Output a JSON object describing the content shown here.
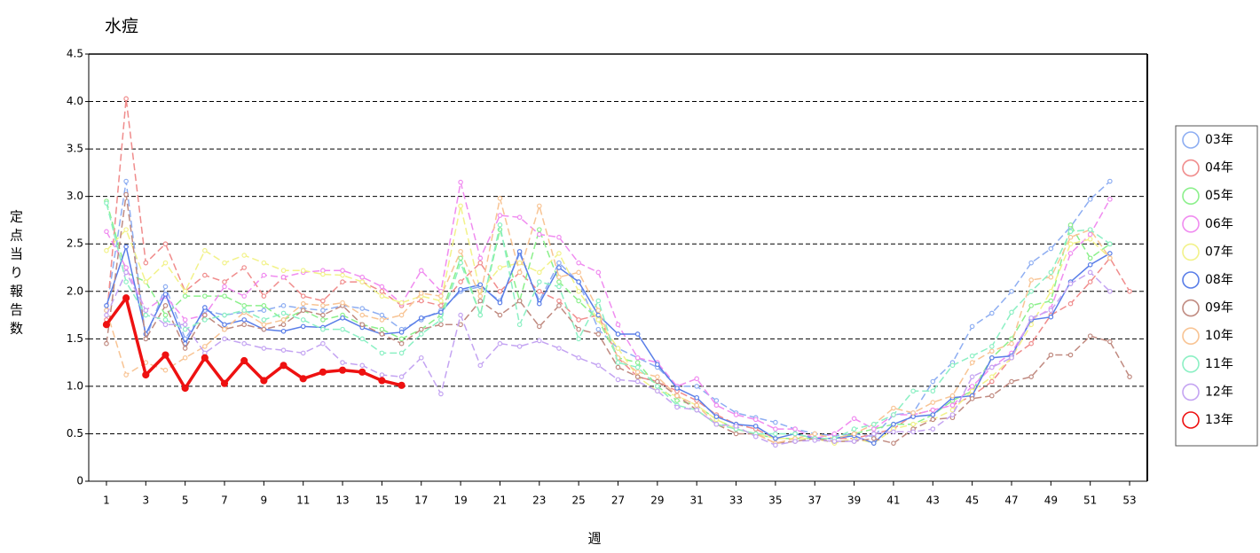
{
  "chart_data": {
    "type": "line",
    "title": "水痘",
    "x_label": "週",
    "y_label": "定点当り報告数",
    "x": [
      1,
      2,
      3,
      4,
      5,
      6,
      7,
      8,
      9,
      10,
      11,
      12,
      13,
      14,
      15,
      16,
      17,
      18,
      19,
      20,
      21,
      22,
      23,
      24,
      25,
      26,
      27,
      28,
      29,
      30,
      31,
      32,
      33,
      34,
      35,
      36,
      37,
      38,
      39,
      40,
      41,
      42,
      43,
      44,
      45,
      46,
      47,
      48,
      49,
      50,
      51,
      52,
      53
    ],
    "xlim": [
      0.1,
      53.9
    ],
    "xticks": [
      1,
      3,
      5,
      7,
      9,
      11,
      13,
      15,
      17,
      19,
      21,
      23,
      25,
      27,
      29,
      31,
      33,
      35,
      37,
      39,
      41,
      43,
      45,
      47,
      49,
      51,
      53
    ],
    "ylim": [
      0,
      4.5
    ],
    "yticks": [
      0,
      0.5,
      {
        "value": 1,
        "label": "1.0"
      },
      1.5,
      {
        "value": 2,
        "label": "2.0"
      },
      2.5,
      {
        "value": 3,
        "label": "3.0"
      },
      3.5,
      {
        "value": 4,
        "label": "4.0"
      },
      4.5
    ],
    "grid": true,
    "legend": "right",
    "series": [
      {
        "name": "03年",
        "color": "#8eaef2",
        "line_style": "dashed",
        "line_width": 1.5,
        "values": [
          1.8,
          3.16,
          1.5,
          2.05,
          1.5,
          1.8,
          1.75,
          1.78,
          1.8,
          1.85,
          1.82,
          1.8,
          1.85,
          1.82,
          1.75,
          1.6,
          1.7,
          1.8,
          2.0,
          2.05,
          1.9,
          2.4,
          1.9,
          2.3,
          2.1,
          1.6,
          1.4,
          1.3,
          1.2,
          1.0,
          1.0,
          0.85,
          0.72,
          0.67,
          0.62,
          0.55,
          0.5,
          0.48,
          0.5,
          0.47,
          0.7,
          0.72,
          1.05,
          1.25,
          1.63,
          1.77,
          2.0,
          2.3,
          2.45,
          2.68,
          2.97,
          3.16,
          null
        ]
      },
      {
        "name": "04年",
        "color": "#f08c8c",
        "line_style": "dashed",
        "line_width": 1.5,
        "values": [
          1.7,
          4.03,
          2.3,
          2.5,
          2.0,
          2.17,
          2.1,
          2.25,
          1.95,
          2.15,
          1.95,
          1.9,
          2.1,
          2.1,
          2.0,
          1.85,
          1.9,
          1.85,
          2.1,
          2.3,
          2.0,
          2.2,
          2.0,
          1.9,
          1.7,
          1.75,
          1.3,
          1.1,
          1.05,
          0.95,
          0.85,
          0.7,
          0.6,
          0.55,
          0.45,
          0.45,
          0.45,
          0.45,
          0.45,
          0.5,
          0.55,
          0.7,
          0.75,
          0.8,
          0.9,
          1.05,
          1.3,
          1.45,
          1.75,
          1.87,
          2.1,
          2.35,
          2.0
        ]
      },
      {
        "name": "05年",
        "color": "#8cf08c",
        "line_style": "dashed",
        "line_width": 1.5,
        "values": [
          2.95,
          2.2,
          2.1,
          1.75,
          1.95,
          1.95,
          1.95,
          1.85,
          1.85,
          1.7,
          1.8,
          1.7,
          1.75,
          1.65,
          1.6,
          1.5,
          1.6,
          1.75,
          2.35,
          1.75,
          2.65,
          1.9,
          2.65,
          2.1,
          1.9,
          1.7,
          1.3,
          1.25,
          1.0,
          0.85,
          0.8,
          0.65,
          0.55,
          0.5,
          0.45,
          0.45,
          0.45,
          0.45,
          0.5,
          0.55,
          0.6,
          0.6,
          0.7,
          0.85,
          0.95,
          1.3,
          1.5,
          1.85,
          1.9,
          2.7,
          2.35,
          2.5,
          null
        ]
      },
      {
        "name": "06年",
        "color": "#f08cf0",
        "line_style": "dashed",
        "line_width": 1.5,
        "values": [
          2.63,
          2.25,
          1.8,
          1.95,
          1.7,
          1.75,
          2.05,
          1.95,
          2.17,
          2.15,
          2.2,
          2.22,
          2.22,
          2.15,
          2.05,
          1.87,
          2.22,
          2.0,
          3.15,
          2.35,
          2.8,
          2.78,
          2.6,
          2.57,
          2.3,
          2.2,
          1.65,
          1.3,
          1.25,
          1.0,
          1.08,
          0.8,
          0.7,
          0.65,
          0.55,
          0.55,
          0.45,
          0.5,
          0.66,
          0.55,
          0.7,
          0.7,
          0.75,
          0.8,
          1.0,
          1.2,
          1.35,
          1.7,
          1.82,
          2.4,
          2.6,
          2.97,
          null
        ]
      },
      {
        "name": "07年",
        "color": "#f2f28a",
        "line_style": "dashed",
        "line_width": 1.5,
        "values": [
          2.43,
          2.65,
          2.1,
          2.3,
          2.0,
          2.43,
          2.3,
          2.38,
          2.3,
          2.22,
          2.22,
          2.18,
          2.17,
          2.1,
          1.95,
          1.88,
          1.95,
          1.9,
          2.9,
          2.0,
          2.25,
          2.3,
          2.2,
          2.4,
          2.0,
          1.7,
          1.4,
          1.1,
          0.95,
          0.9,
          0.8,
          0.65,
          0.55,
          0.5,
          0.45,
          0.45,
          0.45,
          0.4,
          0.45,
          0.4,
          0.55,
          0.6,
          0.65,
          0.75,
          0.95,
          1.1,
          1.3,
          1.65,
          2.0,
          2.5,
          2.55,
          2.35,
          null
        ]
      },
      {
        "name": "08年",
        "color": "#5a7ee8",
        "line_style": "solid",
        "line_width": 1.5,
        "values": [
          1.85,
          2.47,
          1.55,
          1.97,
          1.45,
          1.83,
          1.65,
          1.7,
          1.6,
          1.58,
          1.63,
          1.62,
          1.72,
          1.62,
          1.55,
          1.57,
          1.72,
          1.78,
          2.02,
          2.07,
          1.88,
          2.42,
          1.87,
          2.25,
          2.1,
          1.75,
          1.55,
          1.55,
          1.23,
          0.98,
          0.88,
          0.68,
          0.6,
          0.58,
          0.45,
          0.5,
          0.45,
          0.45,
          0.48,
          0.4,
          0.6,
          0.68,
          0.7,
          0.88,
          0.9,
          1.3,
          1.32,
          1.7,
          1.73,
          2.1,
          2.28,
          2.4,
          null
        ]
      },
      {
        "name": "09年",
        "color": "#c08a80",
        "line_style": "dashed",
        "line_width": 1.5,
        "values": [
          1.45,
          3.02,
          1.5,
          1.85,
          1.4,
          1.75,
          1.6,
          1.65,
          1.6,
          1.65,
          1.8,
          1.75,
          1.85,
          1.65,
          1.55,
          1.45,
          1.6,
          1.65,
          1.65,
          1.9,
          1.75,
          1.9,
          1.63,
          1.85,
          1.6,
          1.55,
          1.2,
          1.1,
          1.05,
          0.9,
          0.75,
          0.6,
          0.5,
          0.5,
          0.4,
          0.42,
          0.45,
          0.42,
          0.42,
          0.45,
          0.4,
          0.55,
          0.65,
          0.67,
          0.87,
          0.9,
          1.05,
          1.1,
          1.33,
          1.33,
          1.53,
          1.47,
          1.1
        ]
      },
      {
        "name": "10年",
        "color": "#f8c494",
        "line_style": "dashed",
        "line_width": 1.5,
        "values": [
          1.8,
          1.12,
          1.25,
          1.17,
          1.3,
          1.42,
          1.6,
          1.78,
          1.65,
          1.7,
          1.87,
          1.85,
          1.88,
          1.75,
          1.7,
          1.75,
          1.98,
          1.95,
          2.42,
          1.95,
          2.98,
          2.2,
          2.9,
          2.15,
          2.2,
          1.8,
          1.3,
          1.15,
          1.1,
          0.9,
          0.8,
          0.6,
          0.55,
          0.5,
          0.4,
          0.45,
          0.5,
          0.45,
          0.5,
          0.6,
          0.77,
          0.72,
          0.83,
          0.9,
          1.25,
          1.37,
          1.45,
          2.12,
          2.15,
          2.57,
          2.65,
          2.35,
          null
        ]
      },
      {
        "name": "11年",
        "color": "#8cf0c4",
        "line_style": "dashed",
        "line_width": 1.5,
        "values": [
          2.93,
          2.1,
          1.75,
          1.7,
          1.6,
          1.7,
          1.75,
          1.8,
          1.7,
          1.77,
          1.7,
          1.6,
          1.6,
          1.5,
          1.35,
          1.35,
          1.55,
          1.7,
          2.3,
          1.75,
          2.7,
          1.65,
          2.1,
          2.05,
          1.5,
          1.9,
          1.25,
          1.2,
          1.0,
          0.8,
          0.75,
          0.6,
          0.55,
          0.5,
          0.5,
          0.5,
          0.45,
          0.45,
          0.55,
          0.6,
          0.7,
          0.95,
          0.95,
          1.22,
          1.32,
          1.42,
          1.78,
          2.0,
          2.2,
          2.63,
          2.65,
          2.5,
          null
        ]
      },
      {
        "name": "12年",
        "color": "#c4a4f2",
        "line_style": "dashed",
        "line_width": 1.5,
        "values": [
          1.75,
          2.2,
          1.8,
          1.65,
          1.65,
          1.35,
          1.5,
          1.45,
          1.4,
          1.38,
          1.35,
          1.45,
          1.25,
          1.22,
          1.12,
          1.1,
          1.3,
          0.92,
          1.75,
          1.22,
          1.45,
          1.42,
          1.48,
          1.4,
          1.3,
          1.22,
          1.07,
          1.05,
          0.95,
          0.78,
          0.75,
          0.6,
          0.58,
          0.47,
          0.38,
          0.42,
          0.43,
          0.42,
          0.42,
          0.5,
          0.52,
          0.52,
          0.55,
          0.7,
          1.1,
          1.2,
          1.3,
          1.72,
          1.8,
          2.08,
          2.2,
          2.0,
          null
        ]
      },
      {
        "name": "13年",
        "color": "#ee1111",
        "line_style": "solid",
        "line_width": 3.5,
        "values": [
          1.65,
          1.93,
          1.12,
          1.33,
          0.98,
          1.3,
          1.03,
          1.27,
          1.06,
          1.22,
          1.08,
          1.15,
          1.17,
          1.15,
          1.06,
          1.01,
          null,
          null,
          null,
          null,
          null,
          null,
          null,
          null,
          null,
          null,
          null,
          null,
          null,
          null,
          null,
          null,
          null,
          null,
          null,
          null,
          null,
          null,
          null,
          null,
          null,
          null,
          null,
          null,
          null,
          null,
          null,
          null,
          null,
          null,
          null,
          null,
          null
        ]
      }
    ]
  }
}
